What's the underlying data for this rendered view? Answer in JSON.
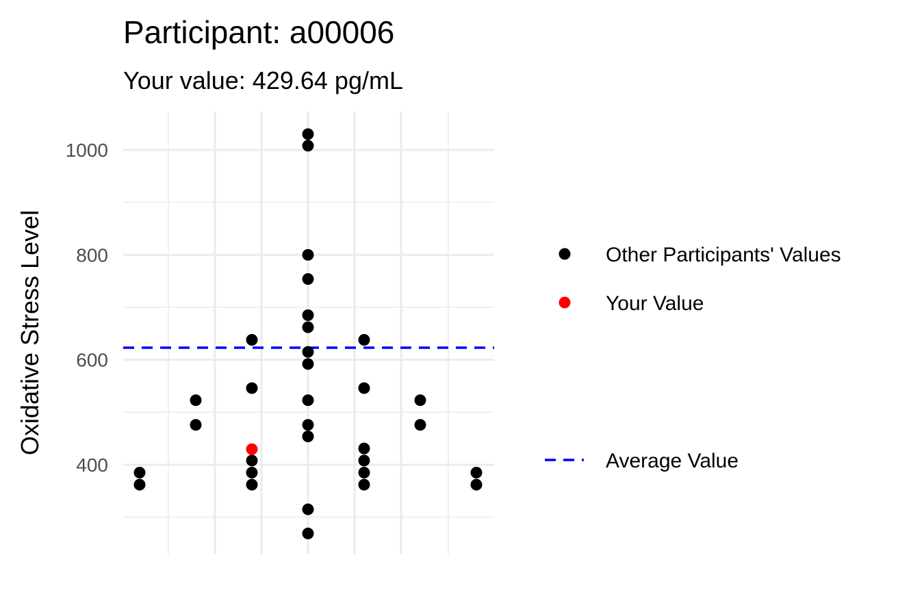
{
  "chart_data": {
    "type": "scatter",
    "title": "Participant: a00006",
    "subtitle": "Your value: 429.64 pg/mL",
    "xlabel": "",
    "ylabel": "Oxidative Stress Level",
    "ylim": [
      230,
      1075
    ],
    "yticks": [
      400,
      600,
      800,
      1000
    ],
    "grid": true,
    "legend_position": "right",
    "average_value": 623,
    "series": [
      {
        "name": "Other Participants' Values",
        "color": "#000000",
        "points": [
          {
            "x": -3,
            "y": 385
          },
          {
            "x": -3,
            "y": 362
          },
          {
            "x": -2,
            "y": 523
          },
          {
            "x": -2,
            "y": 476
          },
          {
            "x": -1,
            "y": 638
          },
          {
            "x": -1,
            "y": 546
          },
          {
            "x": -1,
            "y": 408
          },
          {
            "x": -1,
            "y": 385
          },
          {
            "x": -1,
            "y": 362
          },
          {
            "x": 0,
            "y": 1030
          },
          {
            "x": 0,
            "y": 1008
          },
          {
            "x": 0,
            "y": 800
          },
          {
            "x": 0,
            "y": 754
          },
          {
            "x": 0,
            "y": 685
          },
          {
            "x": 0,
            "y": 662
          },
          {
            "x": 0,
            "y": 615
          },
          {
            "x": 0,
            "y": 592
          },
          {
            "x": 0,
            "y": 523
          },
          {
            "x": 0,
            "y": 476
          },
          {
            "x": 0,
            "y": 454
          },
          {
            "x": 0,
            "y": 315
          },
          {
            "x": 0,
            "y": 269
          },
          {
            "x": 1,
            "y": 638
          },
          {
            "x": 1,
            "y": 546
          },
          {
            "x": 1,
            "y": 431
          },
          {
            "x": 1,
            "y": 408
          },
          {
            "x": 1,
            "y": 385
          },
          {
            "x": 1,
            "y": 362
          },
          {
            "x": 2,
            "y": 523
          },
          {
            "x": 2,
            "y": 476
          },
          {
            "x": 3,
            "y": 385
          },
          {
            "x": 3,
            "y": 362
          }
        ]
      },
      {
        "name": "Your Value",
        "color": "#ff0000",
        "points": [
          {
            "x": -1,
            "y": 429.64
          }
        ]
      }
    ],
    "reference_line": {
      "name": "Average Value",
      "color": "#0000ff",
      "style": "dashed"
    }
  }
}
